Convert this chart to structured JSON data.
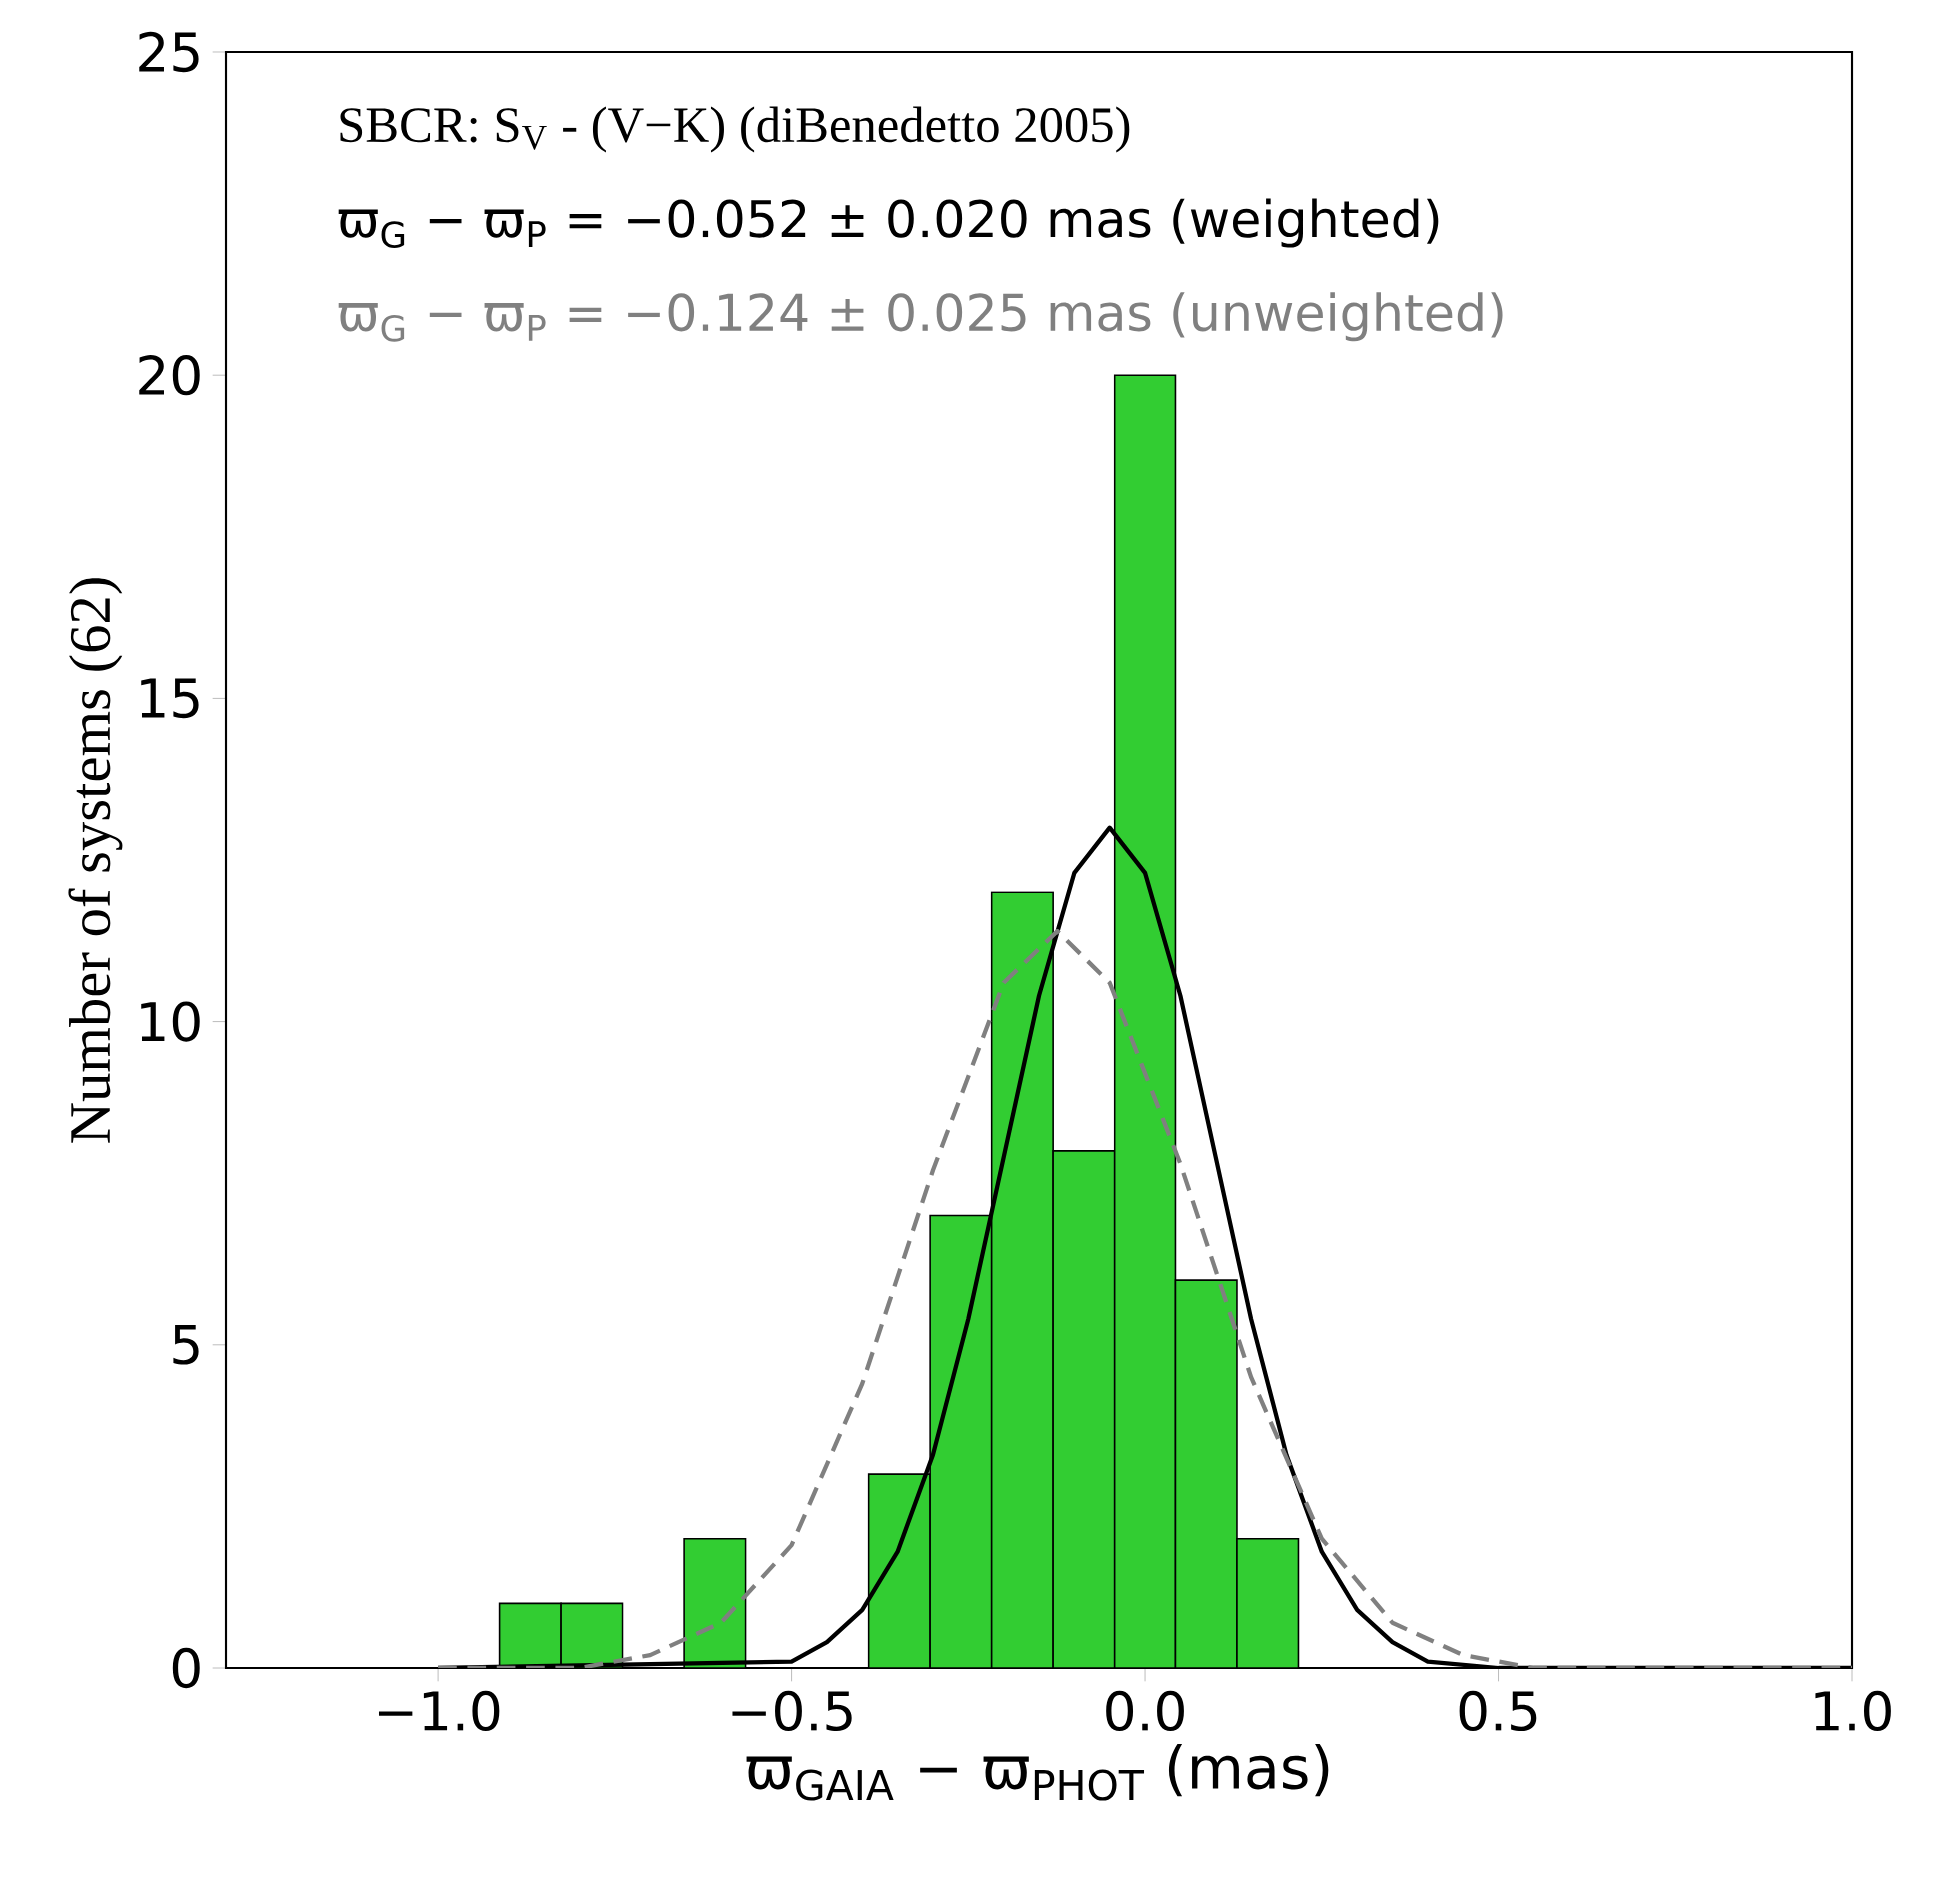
{
  "chart_data": {
    "type": "histogram",
    "xlabel": "ϖ$_{GAIA}$ − ϖ$_{PHOT}$ (mas)",
    "ylabel": "Number of systems (62)",
    "annotations": [
      "SBCR: S$_{V}$ - (V−K)  (diBenedetto 2005)",
      "ϖ$_{G}$ − ϖ$_{P}$ = −0.052 ± 0.020 mas (weighted)",
      "ϖ$_{G}$ − ϖ$_{P}$ = −0.124 ± 0.025 mas (unweighted)"
    ],
    "series": [
      {
        "color": "#32cd32",
        "bins": [
          -0.913,
          -0.826,
          -0.739
        ],
        "values": [
          1,
          1
        ]
      },
      {
        "color": "#32cd32",
        "bins": [
          -0.652,
          -0.565
        ],
        "values": [
          2
        ]
      },
      {
        "color": "#32cd32",
        "bins": [
          -0.391,
          -0.304,
          -0.217,
          -0.13,
          -0.043,
          0.043,
          0.13,
          0.217
        ],
        "values": [
          3,
          7,
          12,
          8,
          20,
          6,
          2
        ]
      },
      {
        "type": "line",
        "color": "#000000",
        "line_style": "solid",
        "x": [
          -1.0,
          -0.5,
          -0.45,
          -0.4,
          -0.35,
          -0.3,
          -0.25,
          -0.2,
          -0.15,
          -0.1,
          -0.05,
          0.0,
          0.05,
          0.1,
          0.15,
          0.2,
          0.25,
          0.3,
          0.35,
          0.4,
          0.5,
          1.0
        ],
        "values": [
          0,
          0.1,
          0.4,
          0.9,
          1.8,
          3.3,
          5.4,
          7.9,
          10.4,
          12.3,
          13.0,
          12.3,
          10.4,
          7.9,
          5.4,
          3.3,
          1.8,
          0.9,
          0.4,
          0.1,
          0,
          0
        ]
      },
      {
        "type": "line",
        "color": "#808080",
        "line_style": "dashed",
        "x": [
          -1.0,
          -0.8,
          -0.7,
          -0.6,
          -0.5,
          -0.4,
          -0.3,
          -0.2,
          -0.124,
          -0.05,
          0.05,
          0.15,
          0.25,
          0.35,
          0.45,
          0.55,
          0.7,
          1.0
        ],
        "values": [
          0,
          0,
          0.2,
          0.7,
          1.9,
          4.4,
          7.7,
          10.6,
          11.4,
          10.6,
          7.8,
          4.5,
          2.0,
          0.7,
          0.2,
          0,
          0,
          0
        ]
      }
    ],
    "xlim": [
      -1.3,
      1.0
    ],
    "ylim": [
      0,
      25
    ],
    "xticks": [
      {
        "value": -1.0,
        "label": "−1.0"
      },
      {
        "value": -0.5,
        "label": "−0.5"
      },
      {
        "value": 0.0,
        "label": "0.0"
      },
      {
        "value": 0.5,
        "label": "0.5"
      },
      {
        "value": 1.0,
        "label": "1.0"
      }
    ],
    "yticks": [
      0,
      5,
      10,
      15,
      20,
      25
    ],
    "grid": false
  }
}
